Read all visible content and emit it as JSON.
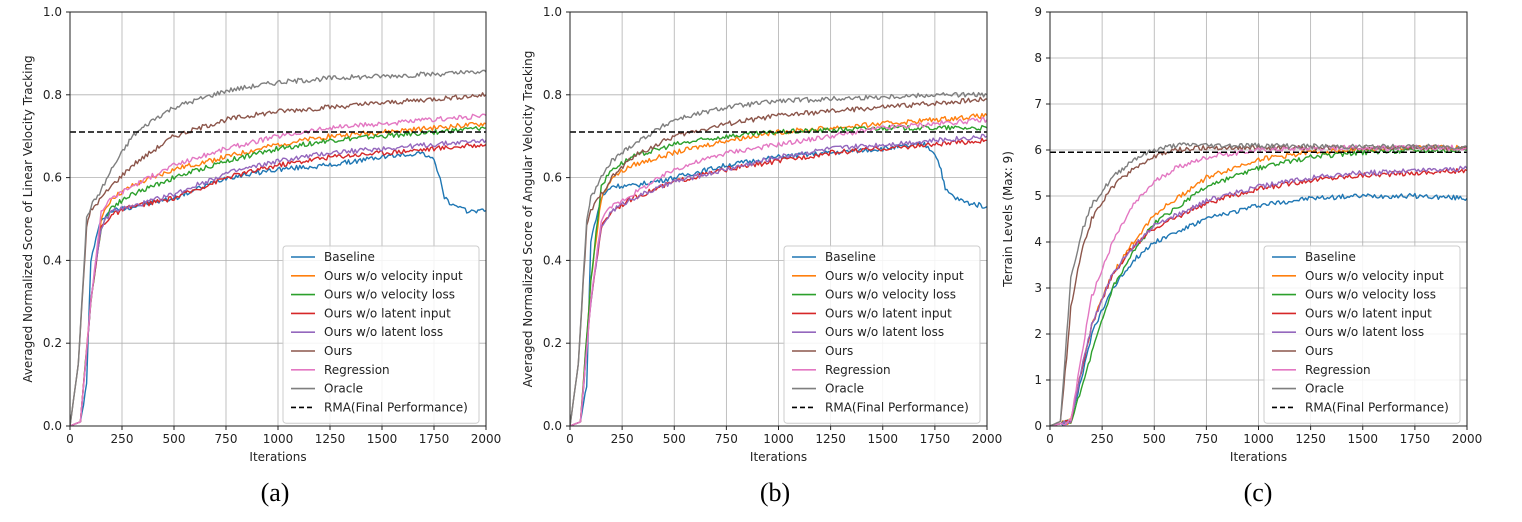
{
  "chart_data": [
    {
      "id": "a",
      "type": "line",
      "caption": "(a)",
      "xlabel": "Iterations",
      "ylabel": "Averaged Normalized Score of Linear Velocity Tracking",
      "xlim": [
        0,
        2000
      ],
      "ylim": [
        0,
        1.0
      ],
      "xticks": [
        0,
        250,
        500,
        750,
        1000,
        1250,
        1500,
        1750,
        2000
      ],
      "yticks": [
        0.0,
        0.2,
        0.4,
        0.6,
        0.8,
        1.0
      ],
      "ytick_labels": [
        "0.0",
        "0.2",
        "0.4",
        "0.6",
        "0.8",
        "1.0"
      ],
      "grid": true,
      "legend_position": "lower-right",
      "reference_line": {
        "name": "RMA(Final Performance)",
        "value": 0.71
      },
      "series": [
        {
          "name": "Baseline",
          "x": [
            0,
            50,
            80,
            100,
            150,
            200,
            300,
            500,
            750,
            1000,
            1250,
            1500,
            1700,
            1750,
            1780,
            1800,
            1850,
            1900,
            2000
          ],
          "y": [
            0,
            0.01,
            0.1,
            0.4,
            0.5,
            0.52,
            0.53,
            0.55,
            0.6,
            0.62,
            0.63,
            0.65,
            0.66,
            0.64,
            0.6,
            0.55,
            0.53,
            0.52,
            0.52
          ]
        },
        {
          "name": "Ours w/o velocity input",
          "x": [
            0,
            50,
            100,
            150,
            200,
            300,
            500,
            750,
            1000,
            1250,
            1500,
            1750,
            2000
          ],
          "y": [
            0,
            0.01,
            0.3,
            0.5,
            0.55,
            0.58,
            0.62,
            0.65,
            0.68,
            0.7,
            0.71,
            0.72,
            0.73
          ]
        },
        {
          "name": "Ours w/o velocity loss",
          "x": [
            0,
            50,
            100,
            150,
            200,
            300,
            500,
            750,
            1000,
            1250,
            1500,
            1750,
            2000
          ],
          "y": [
            0,
            0.01,
            0.3,
            0.48,
            0.53,
            0.56,
            0.6,
            0.64,
            0.67,
            0.69,
            0.7,
            0.71,
            0.72
          ]
        },
        {
          "name": "Ours w/o latent input",
          "x": [
            0,
            50,
            100,
            150,
            200,
            300,
            500,
            750,
            1000,
            1250,
            1500,
            1750,
            2000
          ],
          "y": [
            0,
            0.01,
            0.3,
            0.48,
            0.51,
            0.53,
            0.55,
            0.6,
            0.63,
            0.65,
            0.66,
            0.67,
            0.68
          ]
        },
        {
          "name": "Ours w/o latent loss",
          "x": [
            0,
            50,
            100,
            150,
            200,
            300,
            500,
            750,
            1000,
            1250,
            1500,
            1750,
            2000
          ],
          "y": [
            0,
            0.01,
            0.3,
            0.48,
            0.52,
            0.53,
            0.56,
            0.61,
            0.64,
            0.66,
            0.67,
            0.68,
            0.69
          ]
        },
        {
          "name": "Ours",
          "x": [
            0,
            40,
            80,
            100,
            150,
            200,
            300,
            500,
            750,
            1000,
            1250,
            1500,
            1750,
            2000
          ],
          "y": [
            0,
            0.15,
            0.48,
            0.52,
            0.55,
            0.58,
            0.63,
            0.7,
            0.74,
            0.76,
            0.77,
            0.78,
            0.79,
            0.8
          ]
        },
        {
          "name": "Regression",
          "x": [
            0,
            50,
            100,
            150,
            200,
            300,
            500,
            750,
            1000,
            1250,
            1500,
            1750,
            2000
          ],
          "y": [
            0,
            0.01,
            0.3,
            0.52,
            0.55,
            0.58,
            0.63,
            0.67,
            0.7,
            0.72,
            0.73,
            0.74,
            0.75
          ]
        },
        {
          "name": "Oracle",
          "x": [
            0,
            40,
            80,
            100,
            150,
            200,
            300,
            400,
            500,
            750,
            1000,
            1250,
            1500,
            1750,
            2000
          ],
          "y": [
            0,
            0.15,
            0.5,
            0.53,
            0.57,
            0.62,
            0.7,
            0.74,
            0.77,
            0.81,
            0.83,
            0.84,
            0.845,
            0.85,
            0.855
          ]
        }
      ]
    },
    {
      "id": "b",
      "type": "line",
      "caption": "(b)",
      "xlabel": "Iterations",
      "ylabel": "Averaged Normalized Score of Angular Velocity Tracking",
      "xlim": [
        0,
        2000
      ],
      "ylim": [
        0,
        1.0
      ],
      "xticks": [
        0,
        250,
        500,
        750,
        1000,
        1250,
        1500,
        1750,
        2000
      ],
      "yticks": [
        0.0,
        0.2,
        0.4,
        0.6,
        0.8,
        1.0
      ],
      "ytick_labels": [
        "0.0",
        "0.2",
        "0.4",
        "0.6",
        "0.8",
        "1.0"
      ],
      "grid": true,
      "legend_position": "lower-right",
      "reference_line": {
        "name": "RMA(Final Performance)",
        "value": 0.71
      },
      "series": [
        {
          "name": "Baseline",
          "x": [
            0,
            50,
            80,
            100,
            150,
            200,
            300,
            500,
            750,
            1000,
            1250,
            1500,
            1700,
            1750,
            1780,
            1800,
            1850,
            1900,
            2000
          ],
          "y": [
            0,
            0.01,
            0.1,
            0.45,
            0.55,
            0.58,
            0.58,
            0.6,
            0.63,
            0.65,
            0.66,
            0.67,
            0.68,
            0.66,
            0.62,
            0.57,
            0.55,
            0.54,
            0.53
          ]
        },
        {
          "name": "Ours w/o velocity input",
          "x": [
            0,
            50,
            100,
            150,
            200,
            300,
            500,
            750,
            1000,
            1250,
            1500,
            1750,
            2000
          ],
          "y": [
            0,
            0.01,
            0.35,
            0.55,
            0.6,
            0.63,
            0.66,
            0.69,
            0.71,
            0.72,
            0.73,
            0.74,
            0.75
          ]
        },
        {
          "name": "Ours w/o velocity loss",
          "x": [
            0,
            50,
            100,
            150,
            200,
            300,
            500,
            750,
            1000,
            1250,
            1500,
            1750,
            2000
          ],
          "y": [
            0,
            0.01,
            0.35,
            0.58,
            0.62,
            0.65,
            0.68,
            0.7,
            0.71,
            0.715,
            0.72,
            0.72,
            0.72
          ]
        },
        {
          "name": "Ours w/o latent input",
          "x": [
            0,
            50,
            100,
            150,
            200,
            300,
            500,
            750,
            1000,
            1250,
            1500,
            1750,
            2000
          ],
          "y": [
            0,
            0.01,
            0.3,
            0.48,
            0.52,
            0.55,
            0.59,
            0.62,
            0.64,
            0.66,
            0.67,
            0.68,
            0.69
          ]
        },
        {
          "name": "Ours w/o latent loss",
          "x": [
            0,
            50,
            100,
            150,
            200,
            300,
            500,
            750,
            1000,
            1250,
            1500,
            1750,
            2000
          ],
          "y": [
            0,
            0.01,
            0.3,
            0.48,
            0.52,
            0.55,
            0.59,
            0.62,
            0.65,
            0.67,
            0.68,
            0.69,
            0.7
          ]
        },
        {
          "name": "Ours",
          "x": [
            0,
            40,
            80,
            100,
            150,
            200,
            300,
            500,
            750,
            1000,
            1250,
            1500,
            1750,
            2000
          ],
          "y": [
            0,
            0.15,
            0.48,
            0.52,
            0.56,
            0.6,
            0.65,
            0.7,
            0.73,
            0.75,
            0.76,
            0.77,
            0.78,
            0.79
          ]
        },
        {
          "name": "Regression",
          "x": [
            0,
            50,
            100,
            150,
            200,
            300,
            500,
            750,
            1000,
            1250,
            1500,
            1750,
            2000
          ],
          "y": [
            0,
            0.01,
            0.3,
            0.5,
            0.53,
            0.56,
            0.62,
            0.66,
            0.68,
            0.7,
            0.72,
            0.73,
            0.74
          ]
        },
        {
          "name": "Oracle",
          "x": [
            0,
            40,
            80,
            100,
            150,
            200,
            300,
            400,
            500,
            750,
            1000,
            1250,
            1500,
            1750,
            2000
          ],
          "y": [
            0,
            0.15,
            0.5,
            0.55,
            0.6,
            0.64,
            0.68,
            0.71,
            0.74,
            0.77,
            0.785,
            0.79,
            0.795,
            0.8,
            0.8
          ]
        }
      ]
    },
    {
      "id": "c",
      "type": "line",
      "caption": "(c)",
      "xlabel": "Iterations",
      "ylabel": "Terrain Levels (Max: 9)",
      "xlim": [
        0,
        2000
      ],
      "ylim": [
        0,
        9
      ],
      "xticks": [
        0,
        250,
        500,
        750,
        1000,
        1250,
        1500,
        1750,
        2000
      ],
      "yticks": [
        0,
        1,
        2,
        3,
        4,
        5,
        6,
        7,
        8,
        9
      ],
      "ytick_labels": [
        "0",
        "1",
        "2",
        "3",
        "4",
        "5",
        "6",
        "7",
        "8",
        "9"
      ],
      "grid": true,
      "legend_position": "lower-right",
      "reference_line": {
        "name": "RMA(Final Performance)",
        "value": 5.95
      },
      "series": [
        {
          "name": "Baseline",
          "x": [
            0,
            100,
            150,
            200,
            300,
            400,
            500,
            750,
            1000,
            1250,
            1500,
            1750,
            2000
          ],
          "y": [
            0,
            0.1,
            1.0,
            2.0,
            3.0,
            3.6,
            4.0,
            4.5,
            4.8,
            4.95,
            5.0,
            5.0,
            4.95
          ]
        },
        {
          "name": "Ours w/o velocity input",
          "x": [
            0,
            100,
            150,
            200,
            300,
            400,
            500,
            750,
            1000,
            1250,
            1500,
            1750,
            2000
          ],
          "y": [
            0,
            0.1,
            1.2,
            2.2,
            3.3,
            4.0,
            4.6,
            5.4,
            5.8,
            5.95,
            6.0,
            6.05,
            6.05
          ]
        },
        {
          "name": "Ours w/o velocity loss",
          "x": [
            0,
            100,
            150,
            200,
            300,
            400,
            500,
            750,
            1000,
            1250,
            1500,
            1750,
            2000
          ],
          "y": [
            0,
            0.1,
            0.8,
            1.6,
            3.0,
            3.8,
            4.4,
            5.2,
            5.6,
            5.85,
            5.95,
            6.0,
            6.0
          ]
        },
        {
          "name": "Ours w/o latent input",
          "x": [
            0,
            100,
            150,
            200,
            300,
            400,
            500,
            750,
            1000,
            1250,
            1500,
            1750,
            2000
          ],
          "y": [
            0,
            0.1,
            1.2,
            2.2,
            3.3,
            3.9,
            4.3,
            4.85,
            5.15,
            5.35,
            5.45,
            5.5,
            5.55
          ]
        },
        {
          "name": "Ours w/o latent loss",
          "x": [
            0,
            100,
            150,
            200,
            300,
            400,
            500,
            750,
            1000,
            1250,
            1500,
            1750,
            2000
          ],
          "y": [
            0,
            0.1,
            1.2,
            2.2,
            3.3,
            3.9,
            4.35,
            4.9,
            5.2,
            5.4,
            5.5,
            5.55,
            5.6
          ]
        },
        {
          "name": "Ours",
          "x": [
            0,
            50,
            80,
            100,
            150,
            200,
            300,
            400,
            500,
            600,
            750,
            1000,
            1250,
            1500,
            1750,
            2000
          ],
          "y": [
            0,
            0.1,
            1.5,
            2.6,
            3.8,
            4.5,
            5.2,
            5.6,
            5.85,
            6.0,
            6.05,
            6.05,
            6.05,
            6.05,
            6.05,
            6.05
          ]
        },
        {
          "name": "Regression",
          "x": [
            0,
            100,
            150,
            200,
            300,
            400,
            500,
            600,
            750,
            1000,
            1250,
            1500,
            1750,
            2000
          ],
          "y": [
            0,
            0.1,
            1.5,
            2.8,
            4.0,
            4.8,
            5.3,
            5.6,
            5.85,
            6.0,
            6.05,
            6.05,
            6.05,
            6.05
          ]
        },
        {
          "name": "Oracle",
          "x": [
            0,
            50,
            80,
            100,
            150,
            200,
            300,
            400,
            500,
            600,
            700,
            750,
            1000,
            1250,
            1500,
            1750,
            2000
          ],
          "y": [
            0,
            0.1,
            2.0,
            3.2,
            4.2,
            4.8,
            5.4,
            5.8,
            6.0,
            6.1,
            6.12,
            6.1,
            6.1,
            6.08,
            6.07,
            6.07,
            6.07
          ]
        }
      ]
    }
  ],
  "colors": {
    "Baseline": "#1f77b4",
    "Ours w/o velocity input": "#ff7f0e",
    "Ours w/o velocity loss": "#2ca02c",
    "Ours w/o latent input": "#d62728",
    "Ours w/o latent loss": "#9467bd",
    "Ours": "#8c564b",
    "Regression": "#e377c2",
    "Oracle": "#7f7f7f",
    "RMA(Final Performance)": "#000000"
  }
}
